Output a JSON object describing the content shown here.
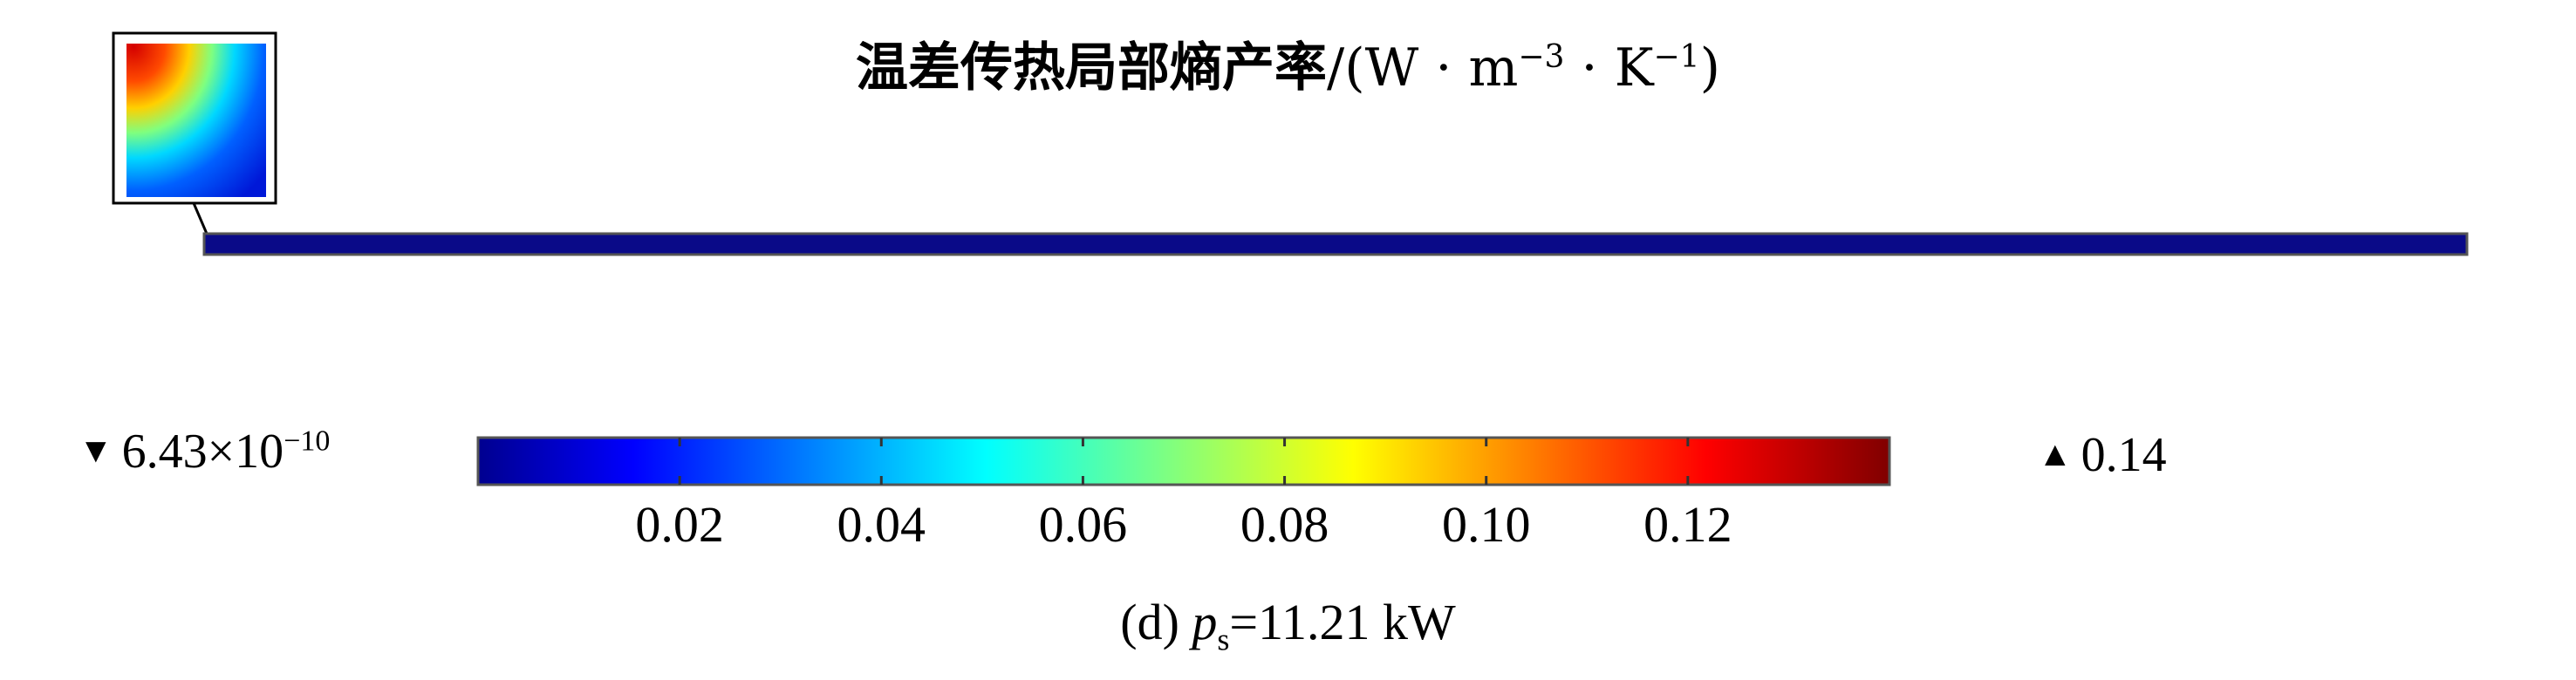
{
  "title": {
    "main": "温差传热局部熵产率",
    "unit_prefix": "/(W · m",
    "unit_exp1": "−3",
    "unit_mid": "· K",
    "unit_exp2": "−1",
    "unit_suffix": ")"
  },
  "colorbar": {
    "min_marker": "▼",
    "min_mantissa": "6.43×10",
    "min_exponent": "−10",
    "max_marker": "▲",
    "max_value": "0.14",
    "tick_labels": [
      "0.02",
      "0.04",
      "0.06",
      "0.08",
      "0.10",
      "0.12"
    ]
  },
  "caption": {
    "prefix": "(d) ",
    "var": "p",
    "sub": "s",
    "rest": "=11.21 kW"
  },
  "chart_data": {
    "type": "heatmap",
    "colormap": "jet",
    "range": [
      6.43e-10,
      0.14
    ],
    "ticks": [
      0.02,
      0.04,
      0.06,
      0.08,
      0.1,
      0.12
    ],
    "colors": [
      "#00008f",
      "#0000ff",
      "#00ffff",
      "#ffff00",
      "#ff0000",
      "#800000"
    ],
    "inset_peak": "top-left"
  }
}
